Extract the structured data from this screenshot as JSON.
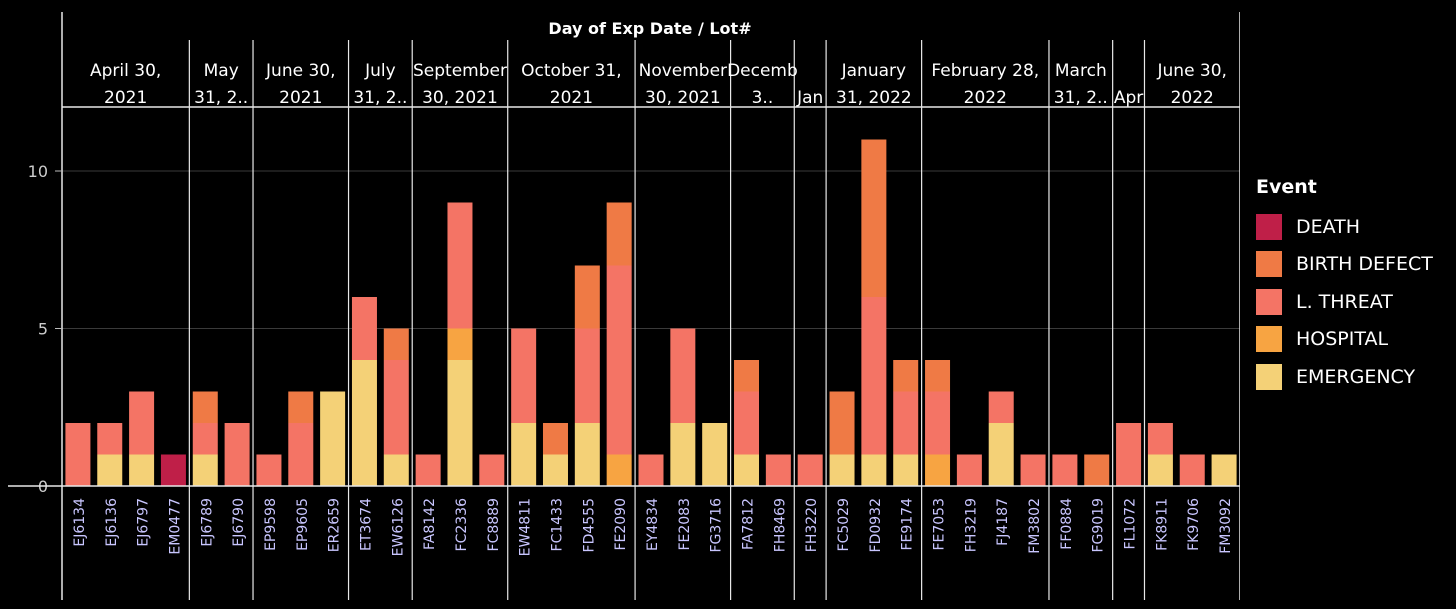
{
  "chart_data": {
    "type": "bar",
    "stacked": true,
    "title": "Day of Exp Date / Lot#",
    "ylim": [
      0,
      12
    ],
    "yticks": [
      0,
      5,
      10
    ],
    "grid": true,
    "legend_title": "Event",
    "legend_position": "right",
    "event_order": [
      "DEATH",
      "BIRTH DEFECT",
      "L. THREAT",
      "HOSPITAL",
      "EMERGENCY"
    ],
    "colors": {
      "DEATH": "#bf1f48",
      "BIRTH DEFECT": "#ef7a45",
      "L. THREAT": "#f47465",
      "HOSPITAL": "#f7a442",
      "EMERGENCY": "#f4d177"
    },
    "groups": [
      {
        "label": [
          "April 30,",
          "2021"
        ],
        "count": 4
      },
      {
        "label": [
          "May",
          "31, 2.."
        ],
        "count": 2
      },
      {
        "label": [
          "June 30,",
          "2021"
        ],
        "count": 3
      },
      {
        "label": [
          "July",
          "31, 2.."
        ],
        "count": 2
      },
      {
        "label": [
          "September",
          "30, 2021"
        ],
        "count": 3
      },
      {
        "label": [
          "October 31,",
          "2021"
        ],
        "count": 4
      },
      {
        "label": [
          "November",
          "30, 2021"
        ],
        "count": 3
      },
      {
        "label": [
          "Decemb",
          "3.."
        ],
        "count": 2
      },
      {
        "label": [
          "",
          "Jan"
        ],
        "count": 1
      },
      {
        "label": [
          "January",
          "31, 2022"
        ],
        "count": 3
      },
      {
        "label": [
          "February 28,",
          "2022"
        ],
        "count": 4
      },
      {
        "label": [
          "March",
          "31, 2.."
        ],
        "count": 2
      },
      {
        "label": [
          "",
          "Apr"
        ],
        "count": 1
      },
      {
        "label": [
          "June 30,",
          "2022"
        ],
        "count": 3
      }
    ],
    "bars": [
      {
        "lot": "EJ6134",
        "DEATH": 0,
        "BIRTH DEFECT": 0,
        "L. THREAT": 2,
        "HOSPITAL": 0,
        "EMERGENCY": 0
      },
      {
        "lot": "EJ6136",
        "DEATH": 0,
        "BIRTH DEFECT": 0,
        "L. THREAT": 1,
        "HOSPITAL": 0,
        "EMERGENCY": 1
      },
      {
        "lot": "EJ6797",
        "DEATH": 0,
        "BIRTH DEFECT": 0,
        "L. THREAT": 2,
        "HOSPITAL": 0,
        "EMERGENCY": 1
      },
      {
        "lot": "EM0477",
        "DEATH": 1,
        "BIRTH DEFECT": 0,
        "L. THREAT": 0,
        "HOSPITAL": 0,
        "EMERGENCY": 0
      },
      {
        "lot": "EJ6789",
        "DEATH": 0,
        "BIRTH DEFECT": 1,
        "L. THREAT": 1,
        "HOSPITAL": 0,
        "EMERGENCY": 1
      },
      {
        "lot": "EJ6790",
        "DEATH": 0,
        "BIRTH DEFECT": 0,
        "L. THREAT": 2,
        "HOSPITAL": 0,
        "EMERGENCY": 0
      },
      {
        "lot": "EP9598",
        "DEATH": 0,
        "BIRTH DEFECT": 0,
        "L. THREAT": 1,
        "HOSPITAL": 0,
        "EMERGENCY": 0
      },
      {
        "lot": "EP9605",
        "DEATH": 0,
        "BIRTH DEFECT": 1,
        "L. THREAT": 2,
        "HOSPITAL": 0,
        "EMERGENCY": 0
      },
      {
        "lot": "ER2659",
        "DEATH": 0,
        "BIRTH DEFECT": 0,
        "L. THREAT": 0,
        "HOSPITAL": 0,
        "EMERGENCY": 3
      },
      {
        "lot": "ET3674",
        "DEATH": 0,
        "BIRTH DEFECT": 0,
        "L. THREAT": 2,
        "HOSPITAL": 0,
        "EMERGENCY": 4
      },
      {
        "lot": "EW6126",
        "DEATH": 0,
        "BIRTH DEFECT": 1,
        "L. THREAT": 3,
        "HOSPITAL": 0,
        "EMERGENCY": 1
      },
      {
        "lot": "FA8142",
        "DEATH": 0,
        "BIRTH DEFECT": 0,
        "L. THREAT": 1,
        "HOSPITAL": 0,
        "EMERGENCY": 0
      },
      {
        "lot": "FC2336",
        "DEATH": 0,
        "BIRTH DEFECT": 0,
        "L. THREAT": 4,
        "HOSPITAL": 1,
        "EMERGENCY": 4
      },
      {
        "lot": "FC8889",
        "DEATH": 0,
        "BIRTH DEFECT": 0,
        "L. THREAT": 1,
        "HOSPITAL": 0,
        "EMERGENCY": 0
      },
      {
        "lot": "EW4811",
        "DEATH": 0,
        "BIRTH DEFECT": 0,
        "L. THREAT": 3,
        "HOSPITAL": 0,
        "EMERGENCY": 2
      },
      {
        "lot": "FC1433",
        "DEATH": 0,
        "BIRTH DEFECT": 1,
        "L. THREAT": 0,
        "HOSPITAL": 0,
        "EMERGENCY": 1
      },
      {
        "lot": "FD4555",
        "DEATH": 0,
        "BIRTH DEFECT": 2,
        "L. THREAT": 3,
        "HOSPITAL": 0,
        "EMERGENCY": 2
      },
      {
        "lot": "FE2090",
        "DEATH": 0,
        "BIRTH DEFECT": 2,
        "L. THREAT": 6,
        "HOSPITAL": 1,
        "EMERGENCY": 0
      },
      {
        "lot": "EY4834",
        "DEATH": 0,
        "BIRTH DEFECT": 0,
        "L. THREAT": 1,
        "HOSPITAL": 0,
        "EMERGENCY": 0
      },
      {
        "lot": "FE2083",
        "DEATH": 0,
        "BIRTH DEFECT": 0,
        "L. THREAT": 3,
        "HOSPITAL": 0,
        "EMERGENCY": 2
      },
      {
        "lot": "FG3716",
        "DEATH": 0,
        "BIRTH DEFECT": 0,
        "L. THREAT": 0,
        "HOSPITAL": 0,
        "EMERGENCY": 2
      },
      {
        "lot": "FA7812",
        "DEATH": 0,
        "BIRTH DEFECT": 1,
        "L. THREAT": 2,
        "HOSPITAL": 0,
        "EMERGENCY": 1
      },
      {
        "lot": "FH8469",
        "DEATH": 0,
        "BIRTH DEFECT": 0,
        "L. THREAT": 1,
        "HOSPITAL": 0,
        "EMERGENCY": 0
      },
      {
        "lot": "FH3220",
        "DEATH": 0,
        "BIRTH DEFECT": 0,
        "L. THREAT": 1,
        "HOSPITAL": 0,
        "EMERGENCY": 0
      },
      {
        "lot": "FC5029",
        "DEATH": 0,
        "BIRTH DEFECT": 2,
        "L. THREAT": 0,
        "HOSPITAL": 0,
        "EMERGENCY": 1
      },
      {
        "lot": "FD0932",
        "DEATH": 0,
        "BIRTH DEFECT": 5,
        "L. THREAT": 5,
        "HOSPITAL": 0,
        "EMERGENCY": 1
      },
      {
        "lot": "FE9174",
        "DEATH": 0,
        "BIRTH DEFECT": 1,
        "L. THREAT": 2,
        "HOSPITAL": 0,
        "EMERGENCY": 1
      },
      {
        "lot": "FE7053",
        "DEATH": 0,
        "BIRTH DEFECT": 1,
        "L. THREAT": 2,
        "HOSPITAL": 1,
        "EMERGENCY": 0
      },
      {
        "lot": "FH3219",
        "DEATH": 0,
        "BIRTH DEFECT": 0,
        "L. THREAT": 1,
        "HOSPITAL": 0,
        "EMERGENCY": 0
      },
      {
        "lot": "FJ4187",
        "DEATH": 0,
        "BIRTH DEFECT": 0,
        "L. THREAT": 1,
        "HOSPITAL": 0,
        "EMERGENCY": 2
      },
      {
        "lot": "FM3802",
        "DEATH": 0,
        "BIRTH DEFECT": 0,
        "L. THREAT": 1,
        "HOSPITAL": 0,
        "EMERGENCY": 0
      },
      {
        "lot": "FF0884",
        "DEATH": 0,
        "BIRTH DEFECT": 0,
        "L. THREAT": 1,
        "HOSPITAL": 0,
        "EMERGENCY": 0
      },
      {
        "lot": "FG9019",
        "DEATH": 0,
        "BIRTH DEFECT": 1,
        "L. THREAT": 0,
        "HOSPITAL": 0,
        "EMERGENCY": 0
      },
      {
        "lot": "FL1072",
        "DEATH": 0,
        "BIRTH DEFECT": 0,
        "L. THREAT": 2,
        "HOSPITAL": 0,
        "EMERGENCY": 0
      },
      {
        "lot": "FK8911",
        "DEATH": 0,
        "BIRTH DEFECT": 0,
        "L. THREAT": 1,
        "HOSPITAL": 0,
        "EMERGENCY": 1
      },
      {
        "lot": "FK9706",
        "DEATH": 0,
        "BIRTH DEFECT": 0,
        "L. THREAT": 1,
        "HOSPITAL": 0,
        "EMERGENCY": 0
      },
      {
        "lot": "FM3092",
        "DEATH": 0,
        "BIRTH DEFECT": 0,
        "L. THREAT": 0,
        "HOSPITAL": 0,
        "EMERGENCY": 1
      }
    ]
  }
}
